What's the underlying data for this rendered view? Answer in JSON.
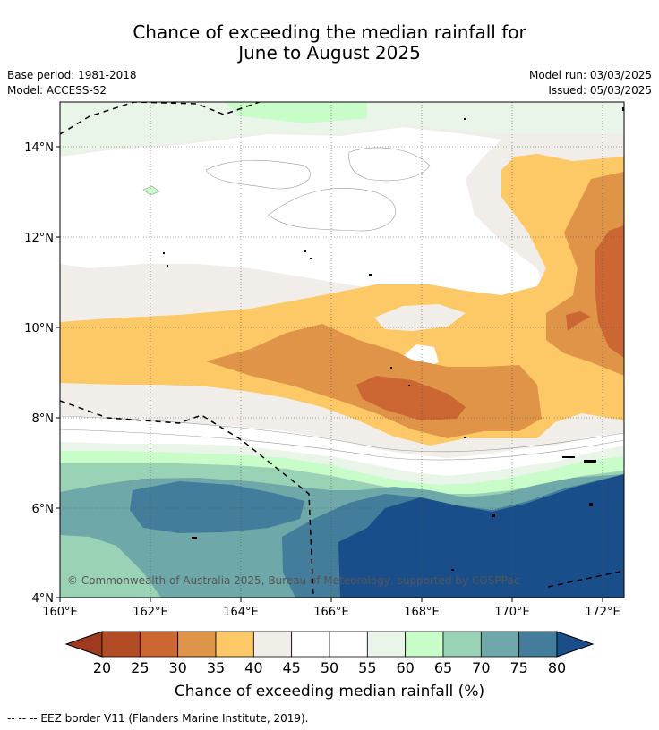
{
  "title_line1": "Chance of exceeding the median rainfall for",
  "title_line2": "June to August 2025",
  "base_period": "Base period: 1981-2018",
  "model": "Model: ACCESS-S2",
  "model_run": "Model run: 03/03/2025",
  "issued": "Issued: 05/03/2025",
  "copyright": "© Commonwealth of Australia 2025, Bureau of Meteorology, supported by COSPPac",
  "lat_labels": [
    "14°N",
    "12°N",
    "10°N",
    "8°N",
    "6°N",
    "4°N"
  ],
  "lon_labels": [
    "160°E",
    "162°E",
    "164°E",
    "166°E",
    "168°E",
    "170°E",
    "172°E"
  ],
  "colorbar": {
    "ticks": [
      "20",
      "25",
      "30",
      "35",
      "40",
      "45",
      "50",
      "55",
      "60",
      "65",
      "70",
      "75",
      "80"
    ],
    "colors": [
      "#9e3a1e",
      "#b14c25",
      "#cc6633",
      "#e09448",
      "#fdc966",
      "#f1ede8",
      "#ffffff",
      "#ffffff",
      "#eaf5ea",
      "#c8fcc8",
      "#9ad2b6",
      "#6fa8a8",
      "#447c9c",
      "#1a4e8a"
    ],
    "label": "Chance of exceeding median rainfall (%)"
  },
  "legend_line": "--  --  -- EEZ border V11 (Flanders Marine Institute, 2019)."
}
